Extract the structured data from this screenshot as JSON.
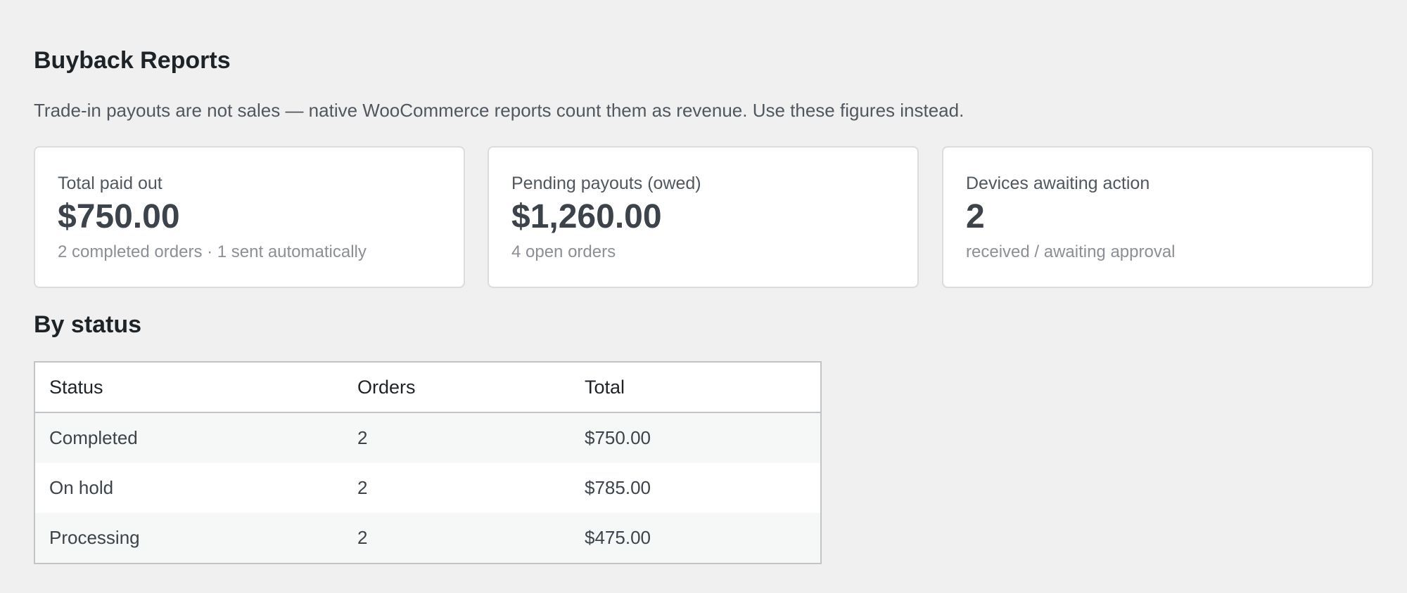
{
  "page": {
    "title": "Buyback Reports",
    "intro": "Trade-in payouts are not sales — native WooCommerce reports count them as revenue. Use these figures instead."
  },
  "cards": [
    {
      "label": "Total paid out",
      "value": "$750.00",
      "sub": "2 completed orders · 1 sent automatically"
    },
    {
      "label": "Pending payouts (owed)",
      "value": "$1,260.00",
      "sub": "4 open orders"
    },
    {
      "label": "Devices awaiting action",
      "value": "2",
      "sub": "received / awaiting approval"
    }
  ],
  "by_status": {
    "title": "By status",
    "columns": [
      "Status",
      "Orders",
      "Total"
    ],
    "rows": [
      {
        "status": "Completed",
        "orders": "2",
        "total": "$750.00"
      },
      {
        "status": "On hold",
        "orders": "2",
        "total": "$785.00"
      },
      {
        "status": "Processing",
        "orders": "2",
        "total": "$475.00"
      }
    ]
  },
  "colors": {
    "background": "#f0f0f1",
    "card": "#ffffff",
    "border": "#dcdcde",
    "text": "#1d2327",
    "muted": "#8c8f94"
  }
}
